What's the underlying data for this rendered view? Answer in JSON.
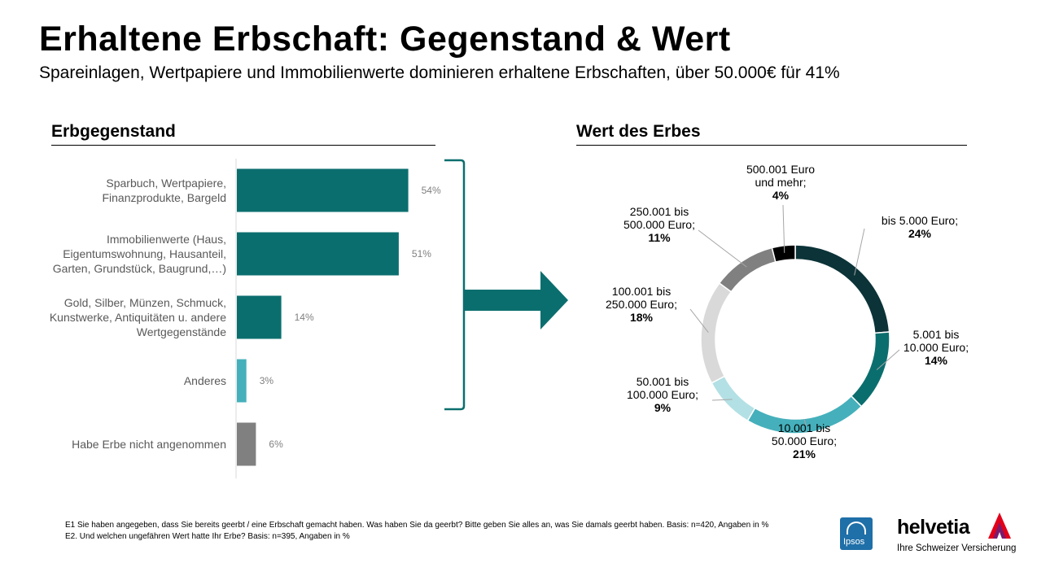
{
  "title": "Erhaltene Erbschaft: Gegenstand & Wert",
  "subtitle": "Spareinlagen, Wertpapiere und Immobilienwerte dominieren erhaltene Erbschaften, über 50.000€ für 41%",
  "colors": {
    "dark_teal": "#0b6e6e",
    "light_teal": "#45b0bb",
    "grey": "#808080",
    "light_grey": "#d9d9d9",
    "pale_teal": "#b3e0e4",
    "near_black": "#0b3338",
    "black": "#000000",
    "helvetia_red": "#e2001a",
    "ipsos_blue": "#1f6fa8"
  },
  "chart_data": [
    {
      "type": "bar",
      "orientation": "horizontal",
      "title": "Erbgegenstand",
      "categories": [
        [
          "Sparbuch, Wertpapiere,",
          "Finanzprodukte, Bargeld"
        ],
        [
          "Immobilienwerte (Haus,",
          "Eigentumswohnung, Hausanteil,",
          "Garten, Grundstück, Baugrund,…)"
        ],
        [
          "Gold, Silber, Münzen, Schmuck,",
          "Kunstwerke, Antiquitäten u. andere",
          "Wertgegenstände"
        ],
        [
          "Anderes"
        ],
        [
          "Habe Erbe nicht angenommen"
        ]
      ],
      "values": [
        54,
        51,
        14,
        3,
        6
      ],
      "value_labels": [
        "54%",
        "51%",
        "14%",
        "3%",
        "6%"
      ],
      "colors": [
        "#0b6e6e",
        "#0b6e6e",
        "#0b6e6e",
        "#45b0bb",
        "#808080"
      ],
      "xlim": [
        0,
        100
      ]
    },
    {
      "type": "pie",
      "donut": true,
      "title": "Wert des Erbes",
      "slices": [
        {
          "label_lines": [
            "bis 5.000 Euro;"
          ],
          "pct_label": "24%",
          "value": 24,
          "color": "#0b3338"
        },
        {
          "label_lines": [
            "5.001 bis",
            "10.000 Euro;"
          ],
          "pct_label": "14%",
          "value": 14,
          "color": "#0b6e6e"
        },
        {
          "label_lines": [
            "10.001 bis",
            "50.000 Euro;"
          ],
          "pct_label": "21%",
          "value": 21,
          "color": "#45b0bb"
        },
        {
          "label_lines": [
            "50.001 bis",
            "100.000 Euro;"
          ],
          "pct_label": "9%",
          "value": 9,
          "color": "#b3e0e4"
        },
        {
          "label_lines": [
            "100.001 bis",
            "250.000 Euro;"
          ],
          "pct_label": "18%",
          "value": 18,
          "color": "#d9d9d9"
        },
        {
          "label_lines": [
            "250.001 bis",
            "500.000 Euro;"
          ],
          "pct_label": "11%",
          "value": 11,
          "color": "#808080"
        },
        {
          "label_lines": [
            "500.001 Euro",
            "und mehr;"
          ],
          "pct_label": "4%",
          "value": 4,
          "color": "#000000"
        }
      ]
    }
  ],
  "footnotes": [
    "E1 Sie haben angegeben, dass Sie bereits geerbt / eine Erbschaft gemacht haben. Was haben Sie da geerbt? Bitte geben Sie alles an, was Sie damals geerbt haben. Basis: n=420, Angaben in %",
    "E2. Und welchen ungefähren Wert hatte Ihr Erbe? Basis: n=395, Angaben in %"
  ],
  "logos": {
    "ipsos": "Ipsos",
    "helvetia": "helvetia",
    "helvetia_slogan": "Ihre Schweizer Versicherung"
  }
}
